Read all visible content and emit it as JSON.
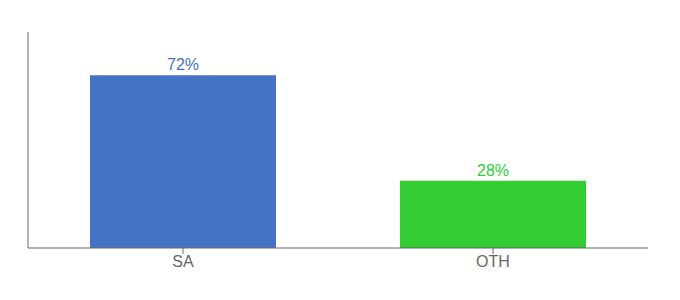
{
  "chart_data": {
    "type": "bar",
    "categories": [
      "SA",
      "OTH"
    ],
    "values": [
      72,
      28
    ],
    "value_labels": [
      "72%",
      "28%"
    ],
    "colors": [
      "#4472C4",
      "#33CC33"
    ],
    "ylim": [
      0,
      90
    ],
    "data_labels": true,
    "tick_labels": "x",
    "grid": false
  }
}
